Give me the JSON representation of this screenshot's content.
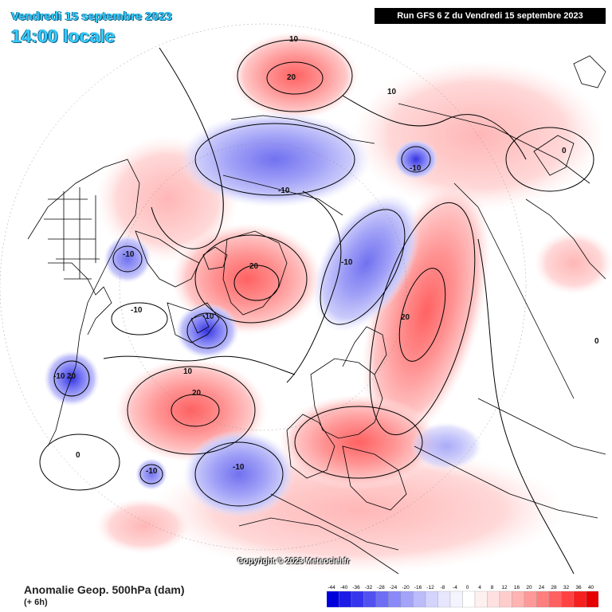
{
  "header": {
    "date": "Vendredi 15 septembre 2023",
    "time": "14:00 locale",
    "run": "Run GFS 6 Z du Vendredi 15 septembre 2023"
  },
  "footer": {
    "title": "Anomalie Geop. 500hPa (dam)",
    "subtitle": "(+ 6h)",
    "copyright": "Copyright © 2023 Meteociel.fr"
  },
  "legend": {
    "ticks": [
      "-44",
      "-40",
      "-36",
      "-32",
      "-28",
      "-24",
      "-20",
      "-16",
      "-12",
      "-8",
      "-4",
      "0",
      "4",
      "8",
      "12",
      "16",
      "20",
      "24",
      "28",
      "32",
      "36",
      "40"
    ],
    "colors": [
      "#0000dd",
      "#1c1ce6",
      "#3535ee",
      "#5151f2",
      "#6d6df5",
      "#8989f7",
      "#a3a3f9",
      "#bcbcfb",
      "#d3d3fc",
      "#e6e6fe",
      "#f4f4ff",
      "#ffffff",
      "#fff0f0",
      "#ffe0e0",
      "#ffcccc",
      "#ffb3b3",
      "#ff9999",
      "#ff7f7f",
      "#ff6161",
      "#ff4242",
      "#f52020",
      "#e60000"
    ]
  },
  "contour_labels": {
    "north_pacific_high": "20",
    "north_pacific_high_outer": "10",
    "greenland_high": "20",
    "atlantic_high": "20",
    "atlantic_high_outer": "10",
    "russia_high": "20",
    "russia_high_outer": "10",
    "siberia_low": "-10",
    "kamchatka_low": "-10",
    "canada_low": "-10",
    "barents_low": "-10",
    "hudson_low": "-10",
    "greatlakes_low": "-10",
    "atlantic_low": "-10",
    "azores_low": "-10",
    "gulf_low": "-10",
    "gulf_low_center": "20",
    "pacific_zero": "0",
    "asia_zero": "0",
    "east_zero": "0"
  }
}
